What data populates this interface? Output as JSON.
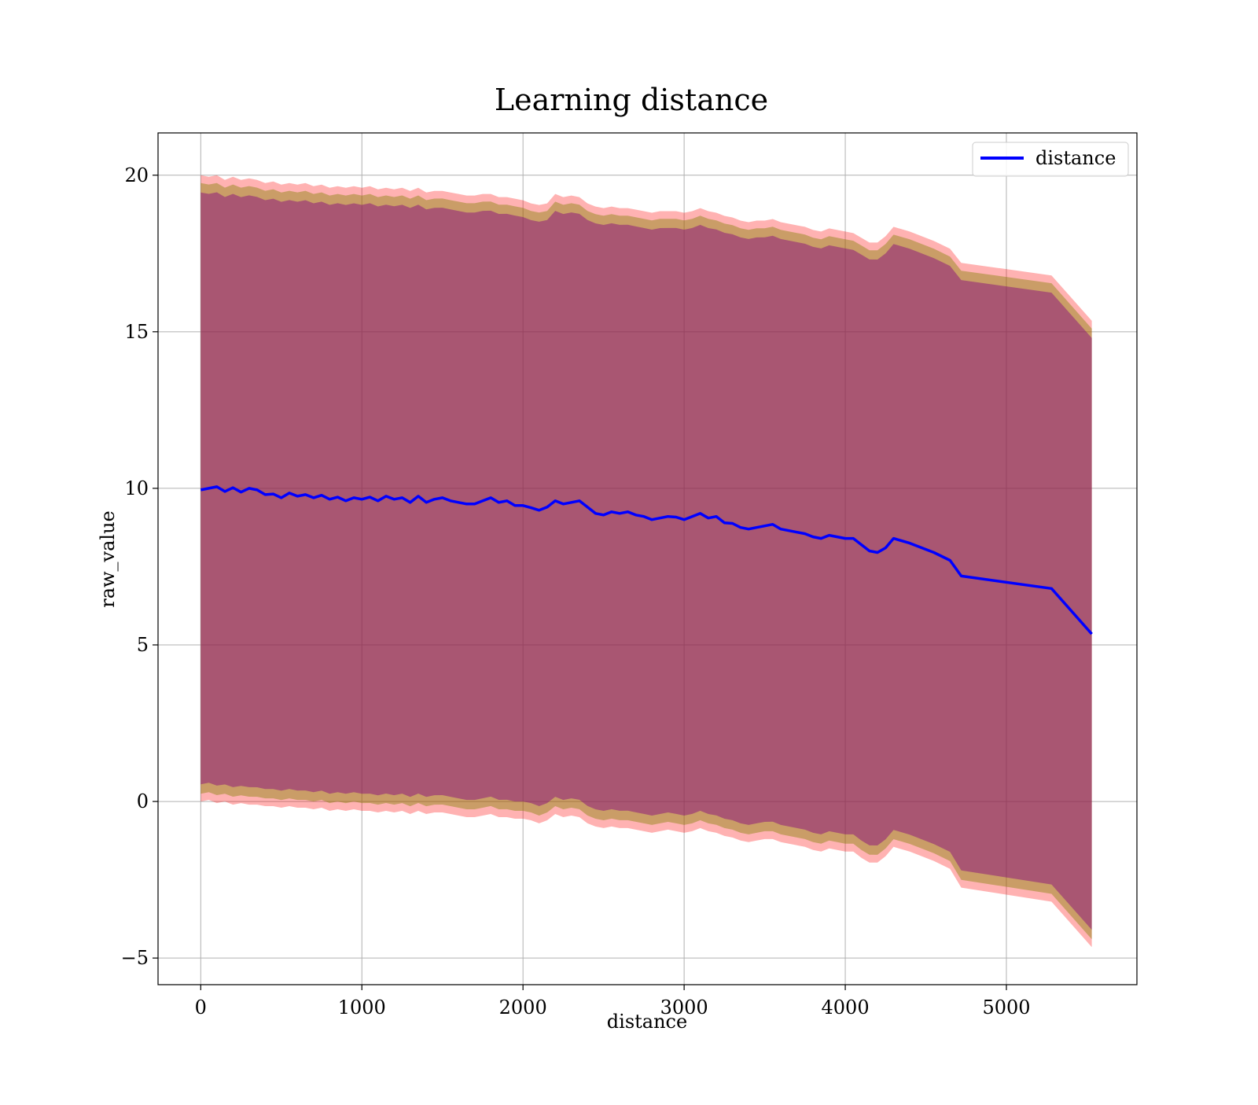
{
  "chart_data": {
    "type": "line",
    "title": "Learning distance",
    "xlabel": "distance",
    "ylabel": "raw_value",
    "xlim": [
      -265,
      5810
    ],
    "ylim": [
      -5.85,
      21.35
    ],
    "xticks": [
      0,
      1000,
      2000,
      3000,
      4000,
      5000
    ],
    "yticks": [
      -5,
      0,
      5,
      10,
      15,
      20
    ],
    "xtick_labels": [
      "0",
      "1000",
      "2000",
      "3000",
      "4000",
      "5000"
    ],
    "ytick_labels": [
      "−5",
      "0",
      "5",
      "10",
      "15",
      "20"
    ],
    "grid": true,
    "legend": {
      "position": "top-right",
      "entries": [
        "distance"
      ]
    },
    "colors": {
      "line": "#0000ff",
      "band_outer": "#ff0000",
      "band_mid": "#808000",
      "band_inner": "#800080"
    },
    "series": [
      {
        "name": "distance",
        "x": [
          0,
          50,
          100,
          150,
          200,
          250,
          300,
          350,
          400,
          450,
          500,
          550,
          600,
          650,
          700,
          750,
          800,
          850,
          900,
          950,
          1000,
          1050,
          1100,
          1150,
          1200,
          1250,
          1300,
          1350,
          1400,
          1450,
          1500,
          1550,
          1600,
          1650,
          1700,
          1750,
          1800,
          1850,
          1900,
          1950,
          2000,
          2050,
          2100,
          2150,
          2200,
          2250,
          2300,
          2350,
          2400,
          2450,
          2500,
          2550,
          2600,
          2650,
          2700,
          2750,
          2800,
          2850,
          2900,
          2950,
          3000,
          3050,
          3100,
          3150,
          3200,
          3250,
          3300,
          3350,
          3400,
          3450,
          3500,
          3550,
          3600,
          3650,
          3700,
          3750,
          3800,
          3850,
          3900,
          3950,
          4000,
          4050,
          4100,
          4150,
          4200,
          4250,
          4300,
          4400,
          4550,
          4650,
          4720,
          5280,
          5530
        ],
        "y": [
          9.95,
          10.0,
          10.05,
          9.9,
          10.02,
          9.88,
          10.0,
          9.95,
          9.8,
          9.82,
          9.7,
          9.85,
          9.75,
          9.8,
          9.7,
          9.78,
          9.65,
          9.72,
          9.6,
          9.7,
          9.65,
          9.72,
          9.6,
          9.75,
          9.65,
          9.7,
          9.55,
          9.75,
          9.55,
          9.65,
          9.7,
          9.6,
          9.55,
          9.5,
          9.5,
          9.6,
          9.7,
          9.55,
          9.6,
          9.45,
          9.45,
          9.38,
          9.3,
          9.4,
          9.6,
          9.5,
          9.55,
          9.6,
          9.4,
          9.2,
          9.15,
          9.25,
          9.2,
          9.25,
          9.15,
          9.1,
          9.0,
          9.05,
          9.1,
          9.08,
          9.0,
          9.1,
          9.2,
          9.05,
          9.1,
          8.9,
          8.88,
          8.75,
          8.7,
          8.75,
          8.8,
          8.85,
          8.7,
          8.65,
          8.6,
          8.55,
          8.45,
          8.4,
          8.5,
          8.45,
          8.4,
          8.4,
          8.2,
          8.0,
          7.95,
          8.1,
          8.4,
          8.25,
          7.95,
          7.7,
          7.2,
          6.8,
          5.35
        ],
        "upper": [
          20.0,
          19.95,
          20.0,
          19.85,
          19.95,
          19.85,
          19.9,
          19.85,
          19.75,
          19.8,
          19.7,
          19.75,
          19.7,
          19.75,
          19.65,
          19.7,
          19.6,
          19.65,
          19.6,
          19.65,
          19.6,
          19.65,
          19.55,
          19.6,
          19.55,
          19.6,
          19.5,
          19.6,
          19.45,
          19.5,
          19.5,
          19.45,
          19.4,
          19.35,
          19.35,
          19.4,
          19.4,
          19.3,
          19.3,
          19.25,
          19.2,
          19.1,
          19.05,
          19.1,
          19.4,
          19.3,
          19.35,
          19.3,
          19.1,
          19.0,
          18.95,
          19.0,
          18.95,
          18.95,
          18.9,
          18.85,
          18.8,
          18.85,
          18.85,
          18.85,
          18.8,
          18.85,
          18.95,
          18.85,
          18.8,
          18.7,
          18.65,
          18.55,
          18.5,
          18.55,
          18.55,
          18.6,
          18.5,
          18.45,
          18.4,
          18.35,
          18.25,
          18.2,
          18.3,
          18.25,
          18.2,
          18.15,
          18.0,
          17.85,
          17.85,
          18.05,
          18.35,
          18.2,
          17.9,
          17.65,
          17.2,
          16.8,
          15.35
        ],
        "lower": [
          0.0,
          0.05,
          -0.05,
          0.0,
          -0.1,
          -0.05,
          -0.1,
          -0.1,
          -0.15,
          -0.15,
          -0.2,
          -0.15,
          -0.2,
          -0.2,
          -0.25,
          -0.2,
          -0.3,
          -0.25,
          -0.3,
          -0.25,
          -0.3,
          -0.3,
          -0.35,
          -0.3,
          -0.35,
          -0.3,
          -0.4,
          -0.3,
          -0.4,
          -0.35,
          -0.35,
          -0.4,
          -0.45,
          -0.5,
          -0.5,
          -0.45,
          -0.4,
          -0.5,
          -0.5,
          -0.55,
          -0.55,
          -0.6,
          -0.7,
          -0.6,
          -0.4,
          -0.5,
          -0.45,
          -0.5,
          -0.7,
          -0.8,
          -0.85,
          -0.8,
          -0.85,
          -0.85,
          -0.9,
          -0.95,
          -1.0,
          -0.95,
          -0.9,
          -0.95,
          -1.0,
          -0.95,
          -0.85,
          -0.95,
          -1.0,
          -1.1,
          -1.15,
          -1.25,
          -1.3,
          -1.25,
          -1.2,
          -1.2,
          -1.3,
          -1.35,
          -1.4,
          -1.45,
          -1.55,
          -1.6,
          -1.5,
          -1.55,
          -1.6,
          -1.6,
          -1.8,
          -1.95,
          -1.95,
          -1.75,
          -1.45,
          -1.6,
          -1.9,
          -2.15,
          -2.75,
          -3.2,
          -4.65
        ]
      }
    ]
  }
}
